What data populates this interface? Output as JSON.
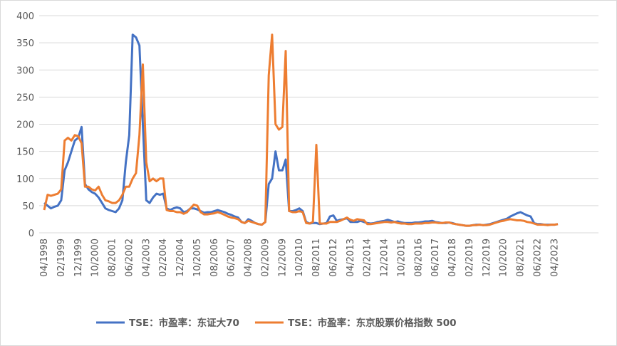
{
  "chart_data": {
    "type": "line",
    "categories": [
      "04/1998",
      null,
      null,
      null,
      null,
      "02/1999",
      null,
      null,
      null,
      null,
      "12/1999",
      null,
      null,
      null,
      null,
      "10/2000",
      null,
      null,
      null,
      null,
      "08/2001",
      null,
      null,
      null,
      null,
      "06/2002",
      null,
      null,
      null,
      null,
      "04/2003",
      null,
      null,
      null,
      null,
      "02/2004",
      null,
      null,
      null,
      null,
      "12/2004",
      null,
      null,
      null,
      null,
      "10/2005",
      null,
      null,
      null,
      null,
      "08/2006",
      null,
      null,
      null,
      null,
      "06/2007",
      null,
      null,
      null,
      null,
      "04/2008",
      null,
      null,
      null,
      null,
      "02/2009",
      null,
      null,
      null,
      null,
      "12/2009",
      null,
      null,
      null,
      null,
      "10/2010",
      null,
      null,
      null,
      null,
      "08/2011",
      null,
      null,
      null,
      null,
      "06/2012",
      null,
      null,
      null,
      null,
      "04/2013",
      null,
      null,
      null,
      null,
      "02/2014",
      null,
      null,
      null,
      null,
      "12/2014",
      null,
      null,
      null,
      null,
      "10/2015",
      null,
      null,
      null,
      null,
      "08/2016",
      null,
      null,
      null,
      null,
      "06/2017",
      null,
      null,
      null,
      null,
      "04/2018",
      null,
      null,
      null,
      null,
      "02/2019",
      null,
      null,
      null,
      null,
      "12/2019",
      null,
      null,
      null,
      null,
      "10/2020",
      null,
      null,
      null,
      null,
      "08/2021",
      null,
      null,
      null,
      null,
      "06/2022",
      null,
      null,
      null,
      null,
      "04/2023",
      null
    ],
    "series": [
      {
        "name": "TSE：市盈率：东证大70",
        "color": "#4472c4",
        "values": [
          55,
          50,
          45,
          48,
          50,
          60,
          115,
          130,
          150,
          170,
          175,
          195,
          90,
          80,
          75,
          72,
          65,
          55,
          45,
          42,
          40,
          38,
          45,
          60,
          130,
          180,
          365,
          360,
          345,
          200,
          60,
          55,
          65,
          72,
          70,
          72,
          45,
          42,
          45,
          47,
          45,
          38,
          40,
          45,
          45,
          43,
          40,
          37,
          38,
          38,
          40,
          42,
          40,
          38,
          35,
          33,
          30,
          28,
          20,
          18,
          25,
          22,
          18,
          16,
          15,
          20,
          90,
          100,
          150,
          115,
          115,
          135,
          40,
          40,
          42,
          45,
          40,
          20,
          17,
          18,
          18,
          16,
          17,
          18,
          30,
          32,
          22,
          24,
          25,
          27,
          20,
          20,
          20,
          22,
          20,
          18,
          17,
          18,
          20,
          21,
          22,
          24,
          22,
          20,
          21,
          19,
          18,
          18,
          18,
          19,
          19,
          20,
          21,
          21,
          22,
          20,
          19,
          18,
          18,
          19,
          18,
          16,
          15,
          14,
          13,
          13,
          14,
          15,
          15,
          14,
          15,
          16,
          18,
          20,
          22,
          24,
          26,
          30,
          33,
          36,
          38,
          35,
          32,
          30,
          18,
          16,
          16,
          15,
          15,
          15,
          15,
          16
        ]
      },
      {
        "name": "TSE：市盈率：东京股票价格指数 500",
        "color": "#ed7d31",
        "values": [
          42,
          70,
          68,
          70,
          72,
          80,
          170,
          175,
          170,
          180,
          178,
          165,
          85,
          85,
          80,
          78,
          85,
          70,
          60,
          58,
          55,
          55,
          60,
          70,
          85,
          85,
          100,
          110,
          180,
          310,
          130,
          95,
          100,
          95,
          100,
          100,
          42,
          40,
          40,
          38,
          38,
          35,
          38,
          45,
          52,
          50,
          38,
          34,
          34,
          35,
          36,
          38,
          36,
          33,
          30,
          28,
          27,
          25,
          20,
          18,
          22,
          20,
          18,
          16,
          15,
          20,
          290,
          365,
          200,
          190,
          195,
          335,
          40,
          38,
          38,
          40,
          38,
          18,
          17,
          20,
          162,
          17,
          17,
          17,
          20,
          20,
          20,
          22,
          25,
          28,
          24,
          22,
          25,
          24,
          23,
          16,
          16,
          17,
          18,
          19,
          20,
          20,
          19,
          20,
          18,
          17,
          17,
          16,
          16,
          17,
          17,
          17,
          18,
          18,
          19,
          19,
          18,
          18,
          19,
          19,
          17,
          16,
          15,
          14,
          13,
          13,
          14,
          14,
          15,
          14,
          14,
          15,
          17,
          19,
          21,
          22,
          24,
          25,
          24,
          23,
          23,
          22,
          20,
          19,
          17,
          15,
          15,
          15,
          14,
          15,
          15,
          16
        ]
      }
    ],
    "ylim": [
      0,
      400
    ],
    "yticks": [
      0,
      50,
      100,
      150,
      200,
      250,
      300,
      350,
      400
    ],
    "grid": true
  }
}
